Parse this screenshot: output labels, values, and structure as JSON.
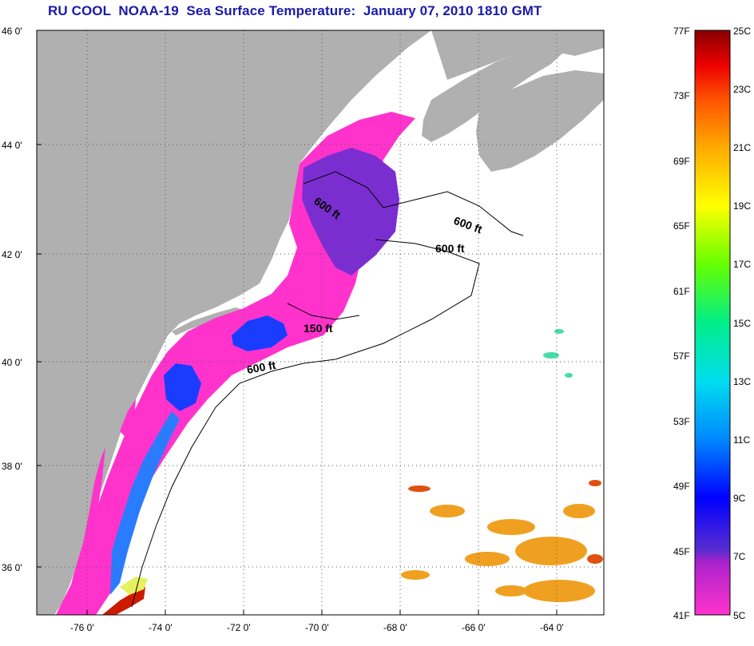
{
  "title": "RU COOL  NOAA-19  Sea Surface Temperature:  January 07, 2010 1810 GMT",
  "map": {
    "lat_labels": [
      "46 0'",
      "44 0'",
      "42 0'",
      "40 0'",
      "38 0'",
      "36 0'"
    ],
    "lon_labels": [
      "-76 0'",
      "-74 0'",
      "-72 0'",
      "-70 0'",
      "-68 0'",
      "-66 0'",
      "-64 0'"
    ],
    "isobath_labels": [
      "600 ft",
      "600 ft",
      "600 ft",
      "150 ft",
      "600 ft"
    ],
    "colors": {
      "land": "#b0b0b0",
      "ocean": "#ffffff",
      "grid": "#555555"
    }
  },
  "colorbar": {
    "fahrenheit_labels": [
      "77F",
      "73F",
      "69F",
      "65F",
      "61F",
      "57F",
      "53F",
      "49F",
      "45F",
      "41F"
    ],
    "celsius_labels": [
      "25C",
      "23C",
      "21C",
      "19C",
      "17C",
      "15C",
      "13C",
      "11C",
      "9C",
      "7C",
      "5C"
    ],
    "gradient": [
      "#ff33cc",
      "#8822cc",
      "#5a2cd0",
      "#0000ff",
      "#0088ff",
      "#00ddee",
      "#00ee88",
      "#66ff00",
      "#ffff00",
      "#ffaa00",
      "#ff5500",
      "#ee0000",
      "#880000"
    ]
  }
}
